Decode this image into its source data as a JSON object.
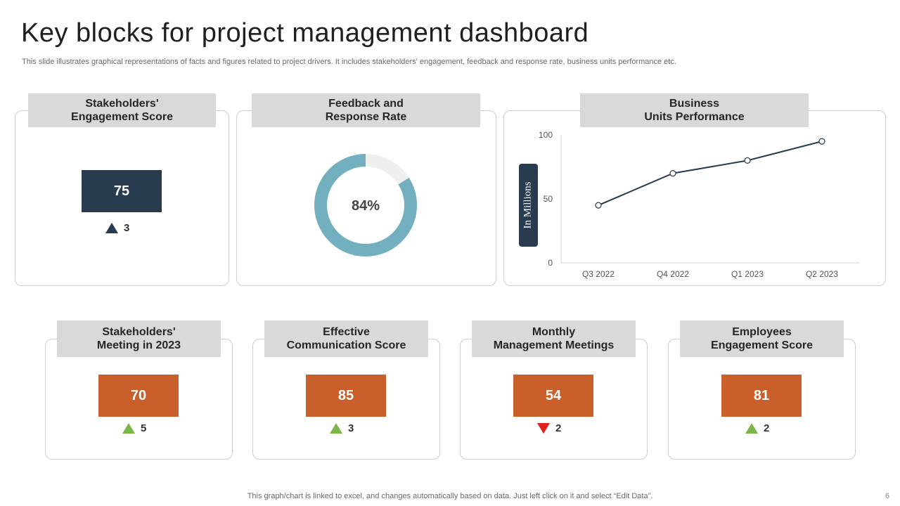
{
  "title": "Key blocks for project management dashboard",
  "subtitle": "This slide illustrates graphical representations of facts and figures related to project drivers. It includes stakeholders' engagement, feedback and response rate, business units performance etc.",
  "top_cards": {
    "stakeholders_engagement": {
      "header_line1": "Stakeholders'",
      "header_line2": "Engagement Score",
      "value": "75",
      "delta": "3",
      "delta_direction": "up"
    },
    "feedback": {
      "header_line1": "Feedback and",
      "header_line2": "Response Rate",
      "percent_label": "84%",
      "percent": 84,
      "ring_color": "#72afbf",
      "track_color": "#efefef"
    },
    "business_units": {
      "header_line1": "Business",
      "header_line2": "Units Performance",
      "ylabel": "In Millions"
    }
  },
  "chart_data": {
    "type": "line",
    "categories": [
      "Q3 2022",
      "Q4 2022",
      "Q1 2023",
      "Q2 2023"
    ],
    "series": [
      {
        "values": [
          45,
          70,
          80,
          95
        ]
      }
    ],
    "xlabel": "",
    "ylabel": "In Millions",
    "yticks": [
      "0",
      "50",
      "100"
    ],
    "ylim": [
      0,
      100
    ],
    "line_color": "#283b4f"
  },
  "bottom_cards": [
    {
      "header_line1": "Stakeholders'",
      "header_line2": "Meeting in 2023",
      "value": "70",
      "delta": "5",
      "delta_direction": "up"
    },
    {
      "header_line1": "Effective",
      "header_line2": "Communication Score",
      "value": "85",
      "delta": "3",
      "delta_direction": "up"
    },
    {
      "header_line1": "Monthly",
      "header_line2": "Management Meetings",
      "value": "54",
      "delta": "2",
      "delta_direction": "down"
    },
    {
      "header_line1": "Employees",
      "header_line2": "Engagement Score",
      "value": "81",
      "delta": "2",
      "delta_direction": "up"
    }
  ],
  "footer": "This graph/chart is linked to excel, and changes automatically based on data. Just left click on it and select “Edit Data”.",
  "page_number": "6",
  "colors": {
    "dark_navy": "#283b4f",
    "orange": "#c9602c",
    "up_green": "#7ab648",
    "down_red": "#e0201c",
    "header_gray": "#d9d9d9"
  }
}
